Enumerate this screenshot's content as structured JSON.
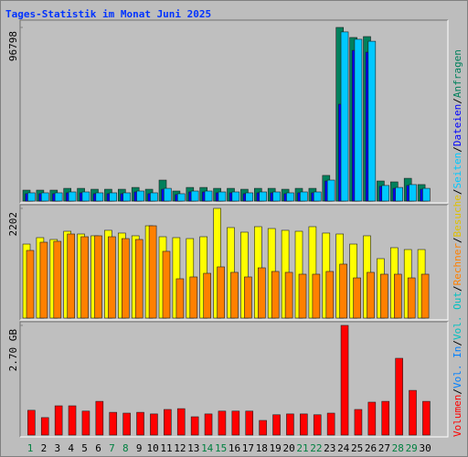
{
  "chart_data": [
    {
      "type": "bar",
      "title": "Tages-Statistik im Monat Juni 2025",
      "categories": [
        "1",
        "2",
        "3",
        "4",
        "5",
        "6",
        "7",
        "8",
        "9",
        "10",
        "11",
        "12",
        "13",
        "14",
        "15",
        "16",
        "17",
        "18",
        "19",
        "20",
        "21",
        "22",
        "23",
        "24",
        "25",
        "26",
        "27",
        "28",
        "29",
        "30"
      ],
      "weekend": [
        true,
        false,
        false,
        false,
        false,
        false,
        true,
        true,
        false,
        false,
        false,
        false,
        false,
        true,
        true,
        false,
        false,
        false,
        false,
        false,
        true,
        true,
        false,
        false,
        false,
        false,
        false,
        true,
        true,
        false
      ],
      "weekend_color": "#008040",
      "ylim": [
        0,
        96798
      ],
      "yticks": [
        96798
      ],
      "series": [
        {
          "name": "Seiten",
          "color": "#00c8ff",
          "values": [
            4600,
            4600,
            4600,
            5100,
            5100,
            4600,
            4600,
            4600,
            5600,
            4600,
            7100,
            4100,
            5600,
            5600,
            5100,
            5100,
            4600,
            5100,
            5100,
            4600,
            5100,
            5100,
            11700,
            94300,
            90200,
            89100,
            8700,
            7600,
            9200,
            7100
          ]
        },
        {
          "name": "Dateien",
          "color": "#0000ff",
          "values": [
            4100,
            4100,
            4100,
            4600,
            4600,
            4100,
            4100,
            4100,
            5100,
            4100,
            6600,
            3600,
            5100,
            5100,
            4600,
            4600,
            4100,
            4600,
            4600,
            4100,
            4600,
            4600,
            11200,
            54000,
            84000,
            83000,
            8200,
            7100,
            8700,
            6600
          ]
        },
        {
          "name": "Anfragen",
          "color": "#00805c",
          "values": [
            6100,
            6100,
            6100,
            7100,
            7100,
            6600,
            6600,
            6600,
            7600,
            6600,
            11700,
            5600,
            7600,
            7600,
            7100,
            7100,
            6600,
            7100,
            7100,
            6600,
            7100,
            7100,
            14300,
            96798,
            91200,
            91700,
            11200,
            10700,
            12700,
            9200
          ]
        }
      ]
    },
    {
      "type": "bar",
      "ylim": [
        0,
        2202
      ],
      "yticks": [
        2202
      ],
      "series": [
        {
          "name": "Rechner",
          "color": "#ff8000",
          "values": [
            1358,
            1523,
            1541,
            1688,
            1633,
            1652,
            1633,
            1596,
            1578,
            1853,
            1340,
            789,
            826,
            899,
            1028,
            918,
            826,
            1009,
            936,
            918,
            881,
            881,
            936,
            1083,
            807,
            918,
            881,
            881,
            807,
            881
          ]
        },
        {
          "name": "Besuche",
          "color": "#ffff00",
          "text_color": "#e0c000",
          "values": [
            1486,
            1615,
            1578,
            1743,
            1688,
            1652,
            1762,
            1707,
            1652,
            1853,
            1633,
            1615,
            1596,
            1633,
            2202,
            1817,
            1725,
            1835,
            1798,
            1762,
            1743,
            1835,
            1707,
            1688,
            1486,
            1652,
            1193,
            1413,
            1376,
            1376
          ]
        }
      ]
    },
    {
      "type": "bar",
      "ylim": [
        0,
        2.7
      ],
      "yticks": [
        {
          "value": 2.7,
          "label": "2.70 GB"
        }
      ],
      "legend_separator": "/",
      "series": [
        {
          "name": "Volumen",
          "color": "#ff0000",
          "values": [
            0.61,
            0.43,
            0.72,
            0.72,
            0.59,
            0.83,
            0.56,
            0.54,
            0.56,
            0.52,
            0.63,
            0.65,
            0.45,
            0.52,
            0.59,
            0.59,
            0.59,
            0.36,
            0.5,
            0.52,
            0.52,
            0.5,
            0.54,
            2.7,
            0.63,
            0.81,
            0.83,
            1.89,
            1.1,
            0.83
          ]
        },
        {
          "name": "Vol. In",
          "color": "#0080ff",
          "values": [
            0,
            0,
            0,
            0,
            0,
            0,
            0,
            0,
            0,
            0,
            0,
            0,
            0,
            0,
            0,
            0,
            0,
            0,
            0,
            0,
            0,
            0,
            0,
            0,
            0,
            0,
            0,
            0,
            0,
            0
          ]
        },
        {
          "name": "Vol. Out",
          "color": "#00c0c0",
          "values": [
            0,
            0,
            0,
            0,
            0,
            0,
            0,
            0,
            0,
            0,
            0,
            0,
            0,
            0,
            0,
            0,
            0,
            0,
            0,
            0,
            0,
            0,
            0,
            0,
            0,
            0,
            0,
            0,
            0,
            0
          ]
        }
      ]
    }
  ]
}
